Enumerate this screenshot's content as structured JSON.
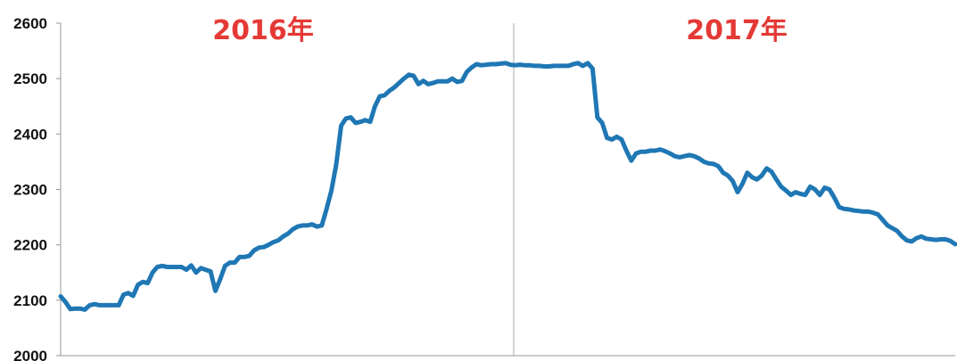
{
  "colors": {
    "line": "#1f77b4",
    "annotation": "#e53935",
    "axis": "#999999"
  },
  "chart_data": {
    "type": "line",
    "title": "",
    "xlabel": "",
    "ylabel": "",
    "ylim": [
      2000,
      2600
    ],
    "yticks": [
      2000,
      2100,
      2200,
      2300,
      2400,
      2500,
      2600
    ],
    "grid": false,
    "annotations": [
      "2016年",
      "2017年"
    ],
    "series": [
      {
        "values": [
          2107,
          2097,
          2084,
          2085,
          2085,
          2083,
          2091,
          2093,
          2091,
          2091,
          2091,
          2091,
          2091,
          2110,
          2113,
          2108,
          2128,
          2133,
          2131,
          2150,
          2160,
          2162,
          2160,
          2160,
          2160,
          2160,
          2155,
          2163,
          2150,
          2158,
          2155,
          2152,
          2117,
          2138,
          2162,
          2168,
          2168,
          2178,
          2178,
          2180,
          2190,
          2195,
          2196,
          2200,
          2205,
          2208,
          2215,
          2220,
          2228,
          2233,
          2235,
          2235,
          2237,
          2233,
          2235,
          2265,
          2298,
          2345,
          2415,
          2428,
          2430,
          2420,
          2422,
          2425,
          2422,
          2450,
          2468,
          2470,
          2478,
          2484,
          2492,
          2500,
          2507,
          2505,
          2490,
          2496,
          2490,
          2492,
          2495,
          2495,
          2495,
          2500,
          2494,
          2496,
          2512,
          2520,
          2526,
          2524,
          2525,
          2526,
          2526,
          2527,
          2528,
          2525,
          2524,
          2525,
          2524,
          2524,
          2523,
          2523,
          2522,
          2522,
          2523,
          2523,
          2523,
          2523,
          2526,
          2528,
          2523,
          2528,
          2518,
          2430,
          2420,
          2393,
          2390,
          2395,
          2390,
          2370,
          2352,
          2365,
          2368,
          2368,
          2370,
          2370,
          2372,
          2369,
          2365,
          2360,
          2358,
          2360,
          2362,
          2360,
          2356,
          2350,
          2347,
          2346,
          2342,
          2330,
          2325,
          2315,
          2295,
          2310,
          2330,
          2322,
          2318,
          2325,
          2338,
          2332,
          2318,
          2305,
          2298,
          2290,
          2295,
          2292,
          2290,
          2305,
          2300,
          2290,
          2303,
          2300,
          2285,
          2268,
          2265,
          2264,
          2262,
          2261,
          2260,
          2260,
          2258,
          2255,
          2245,
          2235,
          2230,
          2225,
          2215,
          2208,
          2206,
          2212,
          2215,
          2211,
          2210,
          2209,
          2210,
          2210,
          2207,
          2201
        ]
      }
    ]
  }
}
